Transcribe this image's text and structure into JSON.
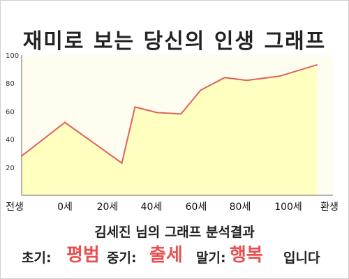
{
  "title": "재미로 보는 당신의 인생 그래프",
  "subtitle": "김세진 님의 그래프 분석결과",
  "result": {
    "early_label": "초기:",
    "early_value": "평범",
    "mid_label": "중기:",
    "mid_value": "출세",
    "late_label": "말기:",
    "late_value": "행복",
    "suffix": "입니다"
  },
  "colors": {
    "line": "#e06060",
    "fill": "#ffffc0",
    "plot_bg": "#fffdf0",
    "highlight": "#e85050"
  },
  "chart_data": {
    "type": "area",
    "x_tick_labels": [
      "전생",
      "0세",
      "20세",
      "40세",
      "60세",
      "80세",
      "100세",
      "환생"
    ],
    "y_ticks": [
      20,
      40,
      60,
      80,
      100
    ],
    "ylim": [
      0,
      100
    ],
    "grid": false,
    "points": [
      {
        "x": -30,
        "y": 28
      },
      {
        "x": 0,
        "y": 52
      },
      {
        "x": 26,
        "y": 23
      },
      {
        "x": 32,
        "y": 63
      },
      {
        "x": 42,
        "y": 59
      },
      {
        "x": 53,
        "y": 58
      },
      {
        "x": 62,
        "y": 75
      },
      {
        "x": 73,
        "y": 84
      },
      {
        "x": 83,
        "y": 82
      },
      {
        "x": 98,
        "y": 85
      },
      {
        "x": 115,
        "y": 93
      }
    ]
  }
}
